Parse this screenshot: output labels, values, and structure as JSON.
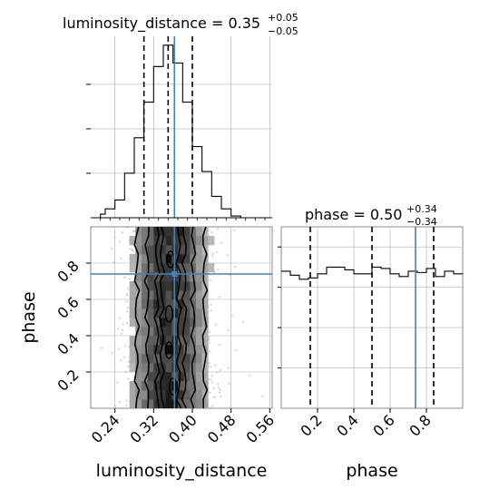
{
  "chart_data": [
    {
      "type": "histogram",
      "panel": "luminosity_distance-marginal",
      "title": {
        "name": "luminosity_distance",
        "median": "0.35",
        "plus": "+0.05",
        "minus": "−0.05"
      },
      "x": [
        0.21,
        0.22,
        0.23,
        0.24,
        0.25,
        0.26,
        0.27,
        0.28,
        0.29,
        0.3,
        0.31,
        0.32,
        0.33,
        0.34,
        0.35,
        0.36,
        0.37,
        0.38,
        0.39,
        0.4,
        0.41,
        0.42,
        0.43,
        0.44,
        0.45,
        0.46,
        0.47,
        0.48,
        0.49,
        0.5,
        0.51,
        0.52,
        0.53,
        0.54,
        0.55,
        0.56
      ],
      "values": [
        0.2,
        0.5,
        0.5,
        1.0,
        1.0,
        2.5,
        2.5,
        4.5,
        4.5,
        6.5,
        6.5,
        8.5,
        8.5,
        9.7,
        9.7,
        8.7,
        8.7,
        6.5,
        6.5,
        4.0,
        4.0,
        2.6,
        2.6,
        1.2,
        1.2,
        0.5,
        0.5,
        0.1,
        0.1,
        0.0,
        0.0,
        0.0,
        0.0,
        0.0,
        0.0
      ],
      "xlim": [
        0.19,
        0.565
      ],
      "ylim": [
        0,
        10.2
      ],
      "quantiles": [
        0.3,
        0.35,
        0.4
      ],
      "truth": 0.363,
      "grid": true
    },
    {
      "type": "histogram",
      "panel": "phase-marginal",
      "title": {
        "name": "phase",
        "median": "0.50",
        "plus": "+0.34",
        "minus": "−0.34"
      },
      "x": [
        0.0,
        0.05,
        0.1,
        0.15,
        0.2,
        0.25,
        0.3,
        0.35,
        0.4,
        0.45,
        0.5,
        0.55,
        0.6,
        0.65,
        0.7,
        0.75,
        0.8,
        0.85,
        0.9,
        0.95,
        1.0
      ],
      "values": [
        1.02,
        0.99,
        0.96,
        0.97,
        1.0,
        1.05,
        1.05,
        1.03,
        1.0,
        1.0,
        1.05,
        1.04,
        1.0,
        0.98,
        1.02,
        1.01,
        1.04,
        0.98,
        1.02,
        1.0
      ],
      "xlim": [
        0.0,
        1.0
      ],
      "ylim": [
        0,
        1.35
      ],
      "quantiles": [
        0.16,
        0.5,
        0.84
      ],
      "truth": 0.74,
      "grid": true
    },
    {
      "type": "heatmap",
      "panel": "luminosity_distance-vs-phase",
      "xlabel": "luminosity_distance",
      "ylabel": "phase",
      "xlim": [
        0.19,
        0.565
      ],
      "ylim": [
        0.0,
        1.0
      ],
      "xticks": [
        "0.24",
        "0.32",
        "0.40",
        "0.48",
        "0.56"
      ],
      "xtick_values": [
        0.24,
        0.32,
        0.4,
        0.48,
        0.56
      ],
      "yticks": [
        "0.2",
        "0.4",
        "0.6",
        "0.8"
      ],
      "ytick_values": [
        0.2,
        0.4,
        0.6,
        0.8
      ],
      "truth": [
        0.363,
        0.74
      ],
      "contour_levels": 4,
      "grid": true
    },
    {
      "type": "axis",
      "panel": "phase-axis",
      "xlabel": "phase",
      "xticks": [
        "0.2",
        "0.4",
        "0.6",
        "0.8"
      ],
      "xtick_values": [
        0.2,
        0.4,
        0.6,
        0.8
      ]
    }
  ],
  "colors": {
    "truth": "#4682b4",
    "hist": "#000000",
    "grid": "#b0b0b0",
    "quantile": "#000000"
  }
}
